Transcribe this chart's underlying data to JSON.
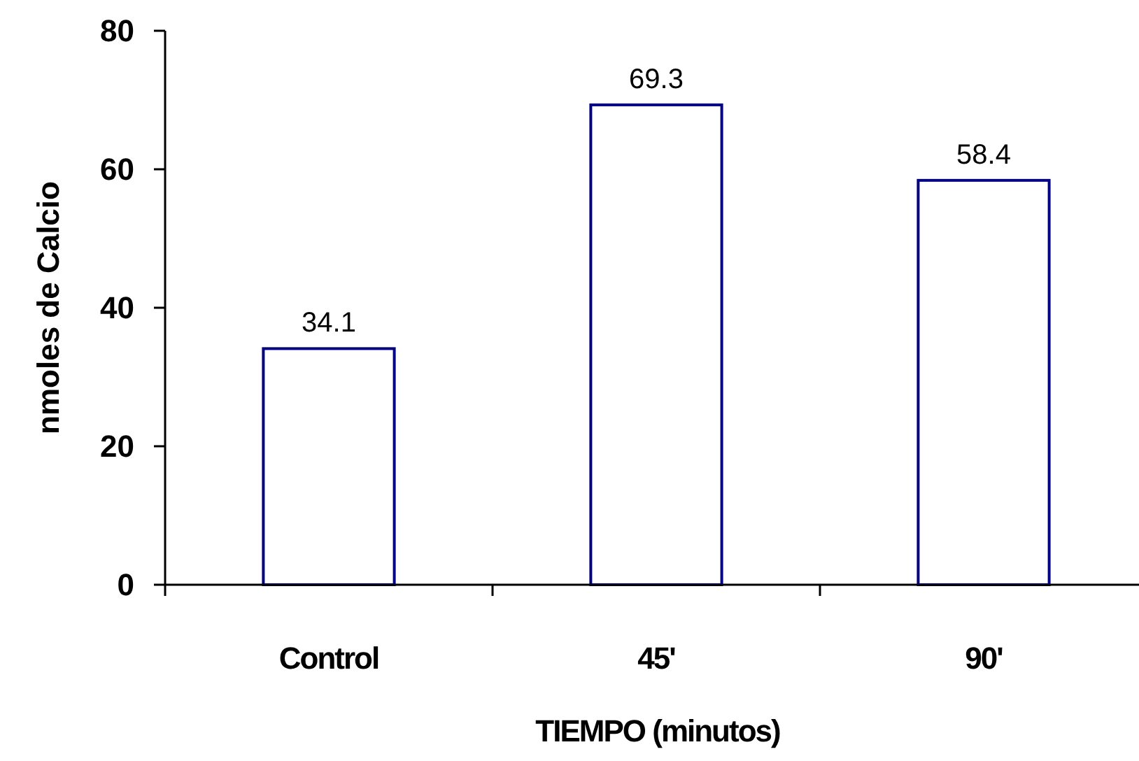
{
  "chart_data": {
    "type": "bar",
    "xlabel": "TIEMPO (minutos)",
    "ylabel": "nmoles de Calcio",
    "categories": [
      "Control",
      "45'",
      "90'"
    ],
    "values": [
      34.1,
      69.3,
      58.4
    ],
    "color": "#000080",
    "ylim": [
      0,
      80
    ],
    "yticks": [
      0,
      20,
      40,
      60,
      80
    ],
    "grid": false,
    "data_labels": true
  }
}
